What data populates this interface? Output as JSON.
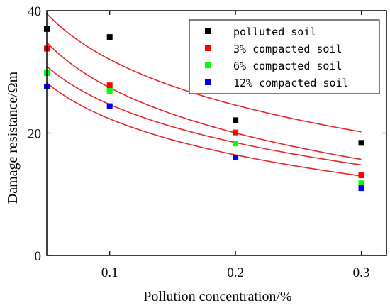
{
  "chart_data": {
    "type": "scatter",
    "title": "",
    "xlabel": "Pollution concentration/%",
    "ylabel": "Damage resistance/Ωm",
    "xlim": [
      0.05,
      0.32
    ],
    "ylim": [
      0,
      40
    ],
    "x_ticks": [
      0.1,
      0.2,
      0.3
    ],
    "x_tick_labels": [
      "0.1",
      "0.2",
      "0.3"
    ],
    "y_ticks": [
      0,
      20,
      40
    ],
    "y_tick_labels": [
      "0",
      "20",
      "40"
    ],
    "grid": false,
    "legend_position": "top-right",
    "x": [
      0.05,
      0.1,
      0.2,
      0.3
    ],
    "series": [
      {
        "name": "polluted soil",
        "color": "#000000",
        "values": [
          37.0,
          35.7,
          22.1,
          18.4
        ]
      },
      {
        "name": "3% compacted soil",
        "color": "#ff0000",
        "values": [
          33.8,
          27.8,
          20.1,
          13.1
        ]
      },
      {
        "name": "6% compacted soil",
        "color": "#00ff00",
        "values": [
          29.8,
          26.9,
          18.3,
          11.8
        ]
      },
      {
        "name": "12% compacted soil",
        "color": "#0000ff",
        "values": [
          27.6,
          24.4,
          16.0,
          11.0
        ]
      }
    ],
    "fit_curves": [
      {
        "color": "#e8262b",
        "x": [
          0.05,
          0.1,
          0.2,
          0.3
        ],
        "values": [
          39.5,
          30.3,
          23.1,
          20.2
        ]
      },
      {
        "color": "#e8262b",
        "x": [
          0.05,
          0.1,
          0.2,
          0.3
        ],
        "values": [
          34.8,
          25.6,
          18.6,
          15.7
        ]
      },
      {
        "color": "#e8262b",
        "x": [
          0.05,
          0.1,
          0.2,
          0.3
        ],
        "values": [
          30.9,
          23.8,
          17.6,
          14.8
        ]
      },
      {
        "color": "#e8262b",
        "x": [
          0.05,
          0.1,
          0.2,
          0.3
        ],
        "values": [
          28.2,
          21.6,
          15.5,
          13.0
        ]
      }
    ]
  }
}
